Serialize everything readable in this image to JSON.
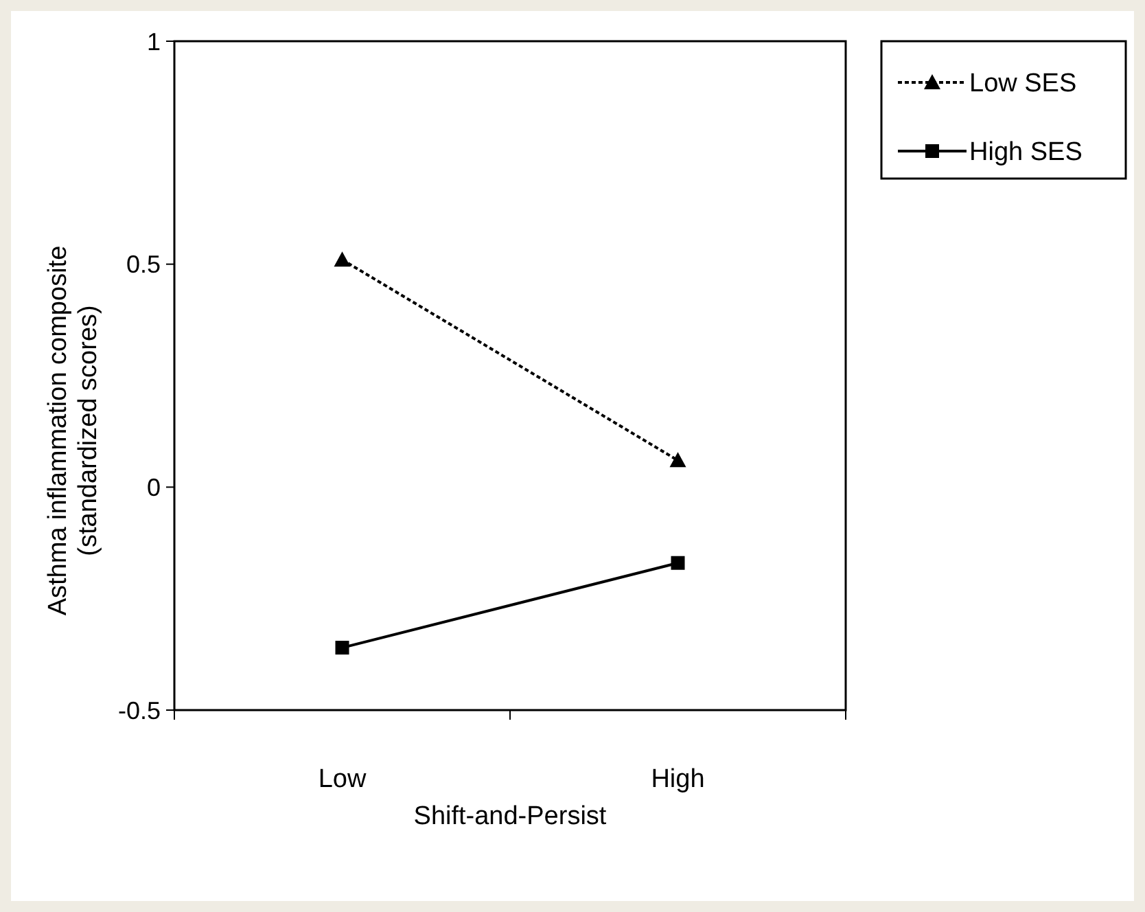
{
  "chart_data": {
    "type": "line",
    "xlabel": "Shift-and-Persist",
    "ylabel": "Asthma inflammation composite\n(standardized scores)",
    "categories": [
      "Low",
      "High"
    ],
    "series": [
      {
        "name": "Low SES",
        "color": "#000000",
        "values": [
          0.51,
          0.06
        ],
        "marker": "triangle",
        "line_style": "dotted"
      },
      {
        "name": "High SES",
        "color": "#000000",
        "values": [
          -0.36,
          -0.17
        ],
        "marker": "square",
        "line_style": "solid"
      }
    ],
    "ylim": [
      -0.5,
      1
    ],
    "yticks": [
      -0.5,
      0,
      0.5,
      1
    ],
    "grid": false,
    "legend": "top right"
  }
}
